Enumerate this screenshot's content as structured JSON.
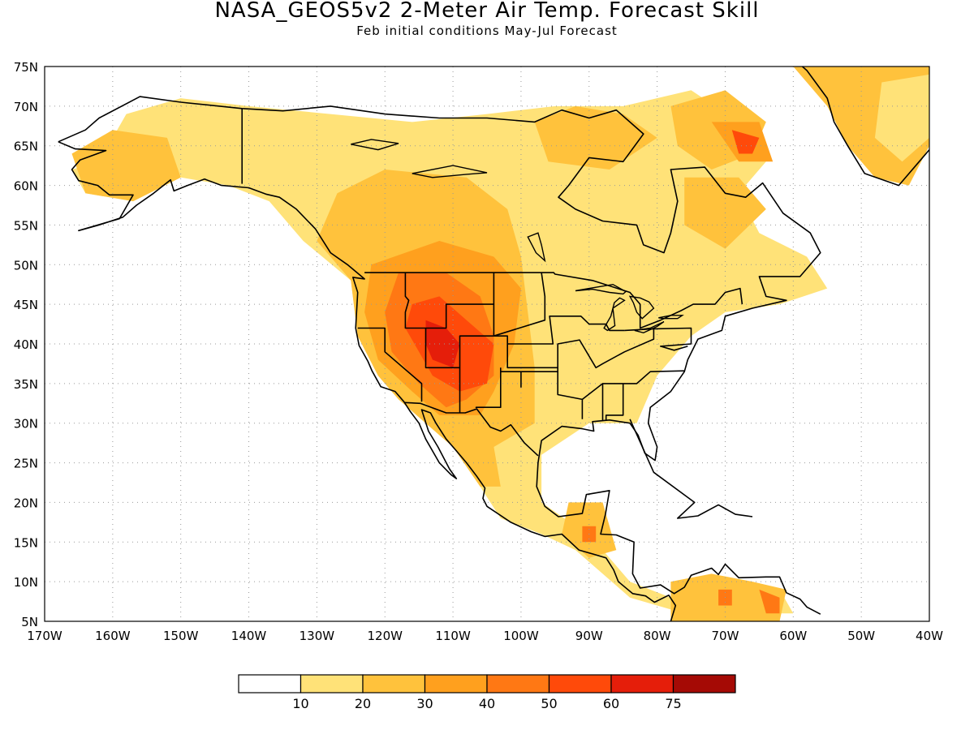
{
  "title": "NASA_GEOS5v2 2-Meter Air Temp. Forecast Skill",
  "subtitle": "Feb initial conditions   May-Jul Forecast",
  "map": {
    "lon_range": [
      -170,
      -40
    ],
    "lat_range": [
      5,
      75
    ],
    "gridlines": "dotted",
    "lat_ticks": [
      {
        "value": 75,
        "label": "75N"
      },
      {
        "value": 70,
        "label": "70N"
      },
      {
        "value": 65,
        "label": "65N"
      },
      {
        "value": 60,
        "label": "60N"
      },
      {
        "value": 55,
        "label": "55N"
      },
      {
        "value": 50,
        "label": "50N"
      },
      {
        "value": 45,
        "label": "45N"
      },
      {
        "value": 40,
        "label": "40N"
      },
      {
        "value": 35,
        "label": "35N"
      },
      {
        "value": 30,
        "label": "30N"
      },
      {
        "value": 25,
        "label": "25N"
      },
      {
        "value": 20,
        "label": "20N"
      },
      {
        "value": 15,
        "label": "15N"
      },
      {
        "value": 10,
        "label": "10N"
      },
      {
        "value": 5,
        "label": "5N"
      }
    ],
    "lon_ticks": [
      {
        "value": -170,
        "label": "170W"
      },
      {
        "value": -160,
        "label": "160W"
      },
      {
        "value": -150,
        "label": "150W"
      },
      {
        "value": -140,
        "label": "140W"
      },
      {
        "value": -130,
        "label": "130W"
      },
      {
        "value": -120,
        "label": "120W"
      },
      {
        "value": -110,
        "label": "110W"
      },
      {
        "value": -100,
        "label": "100W"
      },
      {
        "value": -90,
        "label": "90W"
      },
      {
        "value": -80,
        "label": "80W"
      },
      {
        "value": -70,
        "label": "70W"
      },
      {
        "value": -60,
        "label": "60W"
      },
      {
        "value": -50,
        "label": "50W"
      },
      {
        "value": -40,
        "label": "40W"
      }
    ]
  },
  "colorbar": {
    "colors": [
      "#ffffff",
      "#ffe278",
      "#ffc23c",
      "#ffa01e",
      "#ff7814",
      "#ff4a0a",
      "#e51e0a",
      "#a50a05"
    ],
    "labels": [
      "10",
      "20",
      "30",
      "40",
      "50",
      "60",
      "75"
    ]
  },
  "skill_regions": [
    {
      "level": 1,
      "lonlat": [
        [
          -162,
          63
        ],
        [
          -158,
          69
        ],
        [
          -150,
          71
        ],
        [
          -140,
          70
        ],
        [
          -128,
          69
        ],
        [
          -116,
          68
        ],
        [
          -105,
          69
        ],
        [
          -95,
          70
        ],
        [
          -85,
          70
        ],
        [
          -75,
          72
        ],
        [
          -68,
          68
        ],
        [
          -64,
          63
        ],
        [
          -68,
          59
        ],
        [
          -65,
          54
        ],
        [
          -58,
          51
        ],
        [
          -55,
          47
        ],
        [
          -62,
          45
        ],
        [
          -70,
          44
        ],
        [
          -75,
          41
        ],
        [
          -80,
          36
        ],
        [
          -83,
          30
        ],
        [
          -90,
          30
        ],
        [
          -97,
          26
        ],
        [
          -97,
          20
        ],
        [
          -92,
          17
        ],
        [
          -88,
          14
        ],
        [
          -84,
          10
        ],
        [
          -78,
          8
        ],
        [
          -72,
          10
        ],
        [
          -62,
          9
        ],
        [
          -60,
          6
        ],
        [
          -76,
          6
        ],
        [
          -84,
          8
        ],
        [
          -92,
          14
        ],
        [
          -97,
          16
        ],
        [
          -103,
          18
        ],
        [
          -106,
          22
        ],
        [
          -110,
          27
        ],
        [
          -114,
          30
        ],
        [
          -118,
          33
        ],
        [
          -121,
          36
        ],
        [
          -124,
          41
        ],
        [
          -125,
          48
        ],
        [
          -132,
          53
        ],
        [
          -137,
          58
        ],
        [
          -143,
          60
        ],
        [
          -150,
          61
        ],
        [
          -157,
          58
        ],
        [
          -164,
          59
        ],
        [
          -166,
          62
        ]
      ]
    },
    {
      "level": 2,
      "lonlat": [
        [
          -166,
          64
        ],
        [
          -160,
          67
        ],
        [
          -152,
          66
        ],
        [
          -150,
          61
        ],
        [
          -157,
          58
        ],
        [
          -164,
          59
        ]
      ]
    },
    {
      "level": 2,
      "lonlat": [
        [
          -127,
          59
        ],
        [
          -120,
          62
        ],
        [
          -108,
          61
        ],
        [
          -102,
          57
        ],
        [
          -100,
          51
        ],
        [
          -99,
          44
        ],
        [
          -98,
          37
        ],
        [
          -98,
          30
        ],
        [
          -104,
          27
        ],
        [
          -103,
          22
        ],
        [
          -106,
          22
        ],
        [
          -110,
          27
        ],
        [
          -114,
          30
        ],
        [
          -118,
          33
        ],
        [
          -121,
          36
        ],
        [
          -124,
          41
        ],
        [
          -125,
          48
        ],
        [
          -130,
          53
        ]
      ]
    },
    {
      "level": 2,
      "lonlat": [
        [
          -98,
          68
        ],
        [
          -92,
          70
        ],
        [
          -85,
          69
        ],
        [
          -80,
          66
        ],
        [
          -87,
          62
        ],
        [
          -96,
          63
        ]
      ]
    },
    {
      "level": 2,
      "lonlat": [
        [
          -78,
          70
        ],
        [
          -70,
          72
        ],
        [
          -64,
          68
        ],
        [
          -66,
          64
        ],
        [
          -72,
          62
        ],
        [
          -77,
          65
        ]
      ]
    },
    {
      "level": 2,
      "lonlat": [
        [
          -76,
          61
        ],
        [
          -68,
          61
        ],
        [
          -64,
          57
        ],
        [
          -70,
          52
        ],
        [
          -76,
          55
        ]
      ]
    },
    {
      "level": 2,
      "lonlat": [
        [
          -93,
          20
        ],
        [
          -88,
          20
        ],
        [
          -86,
          14
        ],
        [
          -90,
          13
        ],
        [
          -94,
          16
        ]
      ]
    },
    {
      "level": 2,
      "lonlat": [
        [
          -78,
          10
        ],
        [
          -72,
          11
        ],
        [
          -66,
          10
        ],
        [
          -61,
          9
        ],
        [
          -62,
          5
        ],
        [
          -78,
          5
        ]
      ]
    },
    {
      "level": 3,
      "lonlat": [
        [
          -122,
          50
        ],
        [
          -112,
          53
        ],
        [
          -104,
          51
        ],
        [
          -100,
          47
        ],
        [
          -101,
          40
        ],
        [
          -104,
          34
        ],
        [
          -106,
          31
        ],
        [
          -112,
          31
        ],
        [
          -116,
          34
        ],
        [
          -121,
          38
        ],
        [
          -123,
          44
        ]
      ]
    },
    {
      "level": 3,
      "lonlat": [
        [
          -72,
          68
        ],
        [
          -65,
          68
        ],
        [
          -63,
          63
        ],
        [
          -68,
          63
        ]
      ]
    },
    {
      "level": 4,
      "lonlat": [
        [
          -118,
          49
        ],
        [
          -111,
          49
        ],
        [
          -106,
          46
        ],
        [
          -104,
          41
        ],
        [
          -104,
          36
        ],
        [
          -108,
          33
        ],
        [
          -111,
          32
        ],
        [
          -115,
          35
        ],
        [
          -119,
          39
        ],
        [
          -120,
          44
        ]
      ]
    },
    {
      "level": 4,
      "lonlat": [
        [
          -91,
          17
        ],
        [
          -89,
          17
        ],
        [
          -89,
          15
        ],
        [
          -91,
          15
        ]
      ]
    },
    {
      "level": 4,
      "lonlat": [
        [
          -71,
          9
        ],
        [
          -69,
          9
        ],
        [
          -69,
          7
        ],
        [
          -71,
          7
        ]
      ]
    },
    {
      "level": 4,
      "lonlat": [
        [
          -65,
          9
        ],
        [
          -62,
          8
        ],
        [
          -62,
          6
        ],
        [
          -64,
          6
        ]
      ]
    },
    {
      "level": 5,
      "lonlat": [
        [
          -116,
          45
        ],
        [
          -112,
          46
        ],
        [
          -108,
          43
        ],
        [
          -104,
          40
        ],
        [
          -105,
          35
        ],
        [
          -109,
          34
        ],
        [
          -113,
          36
        ],
        [
          -115,
          39
        ],
        [
          -117,
          42
        ]
      ]
    },
    {
      "level": 5,
      "lonlat": [
        [
          -69,
          67
        ],
        [
          -65,
          66
        ],
        [
          -66,
          64
        ],
        [
          -68,
          64
        ]
      ]
    },
    {
      "level": 6,
      "lonlat": [
        [
          -114,
          43
        ],
        [
          -111,
          42
        ],
        [
          -109,
          40
        ],
        [
          -110,
          37
        ],
        [
          -113,
          38
        ],
        [
          -114,
          40
        ]
      ]
    }
  ],
  "greenland_regions": [
    {
      "level": 2,
      "lonlat": [
        [
          -73,
          78
        ],
        [
          -40,
          78
        ],
        [
          -40,
          65
        ],
        [
          -43,
          60
        ],
        [
          -48,
          61
        ],
        [
          -52,
          65
        ],
        [
          -55,
          70
        ],
        [
          -60,
          75
        ]
      ]
    },
    {
      "level": 1,
      "lonlat": [
        [
          -47,
          73
        ],
        [
          -40,
          74
        ],
        [
          -40,
          66
        ],
        [
          -44,
          63
        ],
        [
          -48,
          66
        ]
      ]
    }
  ]
}
